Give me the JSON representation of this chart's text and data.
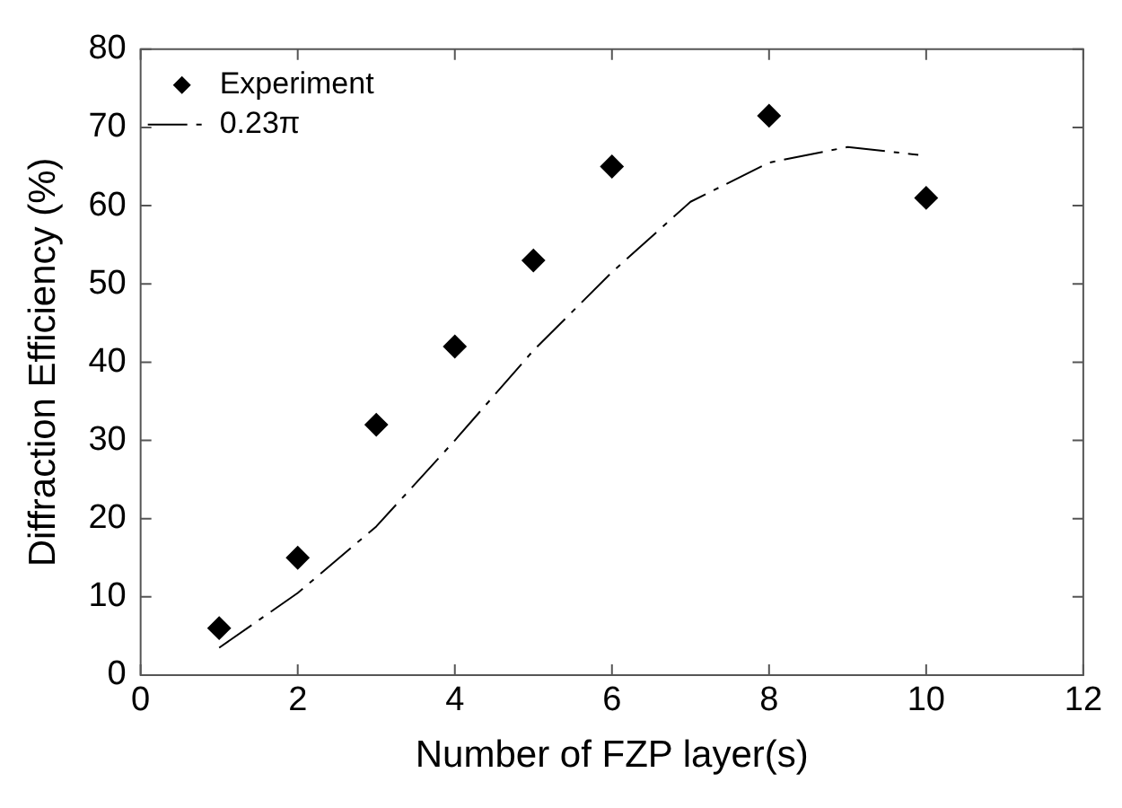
{
  "chart_data": {
    "type": "scatter",
    "xlabel": "Number of FZP layer(s)",
    "ylabel": "Diffraction Efficiency (%)",
    "xlim": [
      0,
      12
    ],
    "xticks": [
      0,
      2,
      4,
      6,
      8,
      10,
      12
    ],
    "ylim": [
      0,
      80
    ],
    "yticks": [
      0,
      10,
      20,
      30,
      40,
      50,
      60,
      70,
      80
    ],
    "grid": false,
    "legend": "top left",
    "series": [
      {
        "name": "Experiment",
        "type": "scatter",
        "color": "#000000",
        "marker": "diamond",
        "x": [
          1,
          2,
          3,
          4,
          5,
          6,
          8,
          10
        ],
        "values": [
          6,
          15,
          32,
          42,
          53,
          65,
          71.5,
          61
        ]
      },
      {
        "name": "0.23π",
        "type": "line",
        "color": "#000000",
        "marker": "none",
        "line_style": "dashed",
        "x": [
          1,
          2,
          3,
          4,
          5,
          6,
          7,
          8,
          9,
          9.9
        ],
        "values": [
          3.5,
          10.5,
          19,
          30,
          41.5,
          51.5,
          60.5,
          65.5,
          67.5,
          66.5
        ]
      }
    ]
  }
}
